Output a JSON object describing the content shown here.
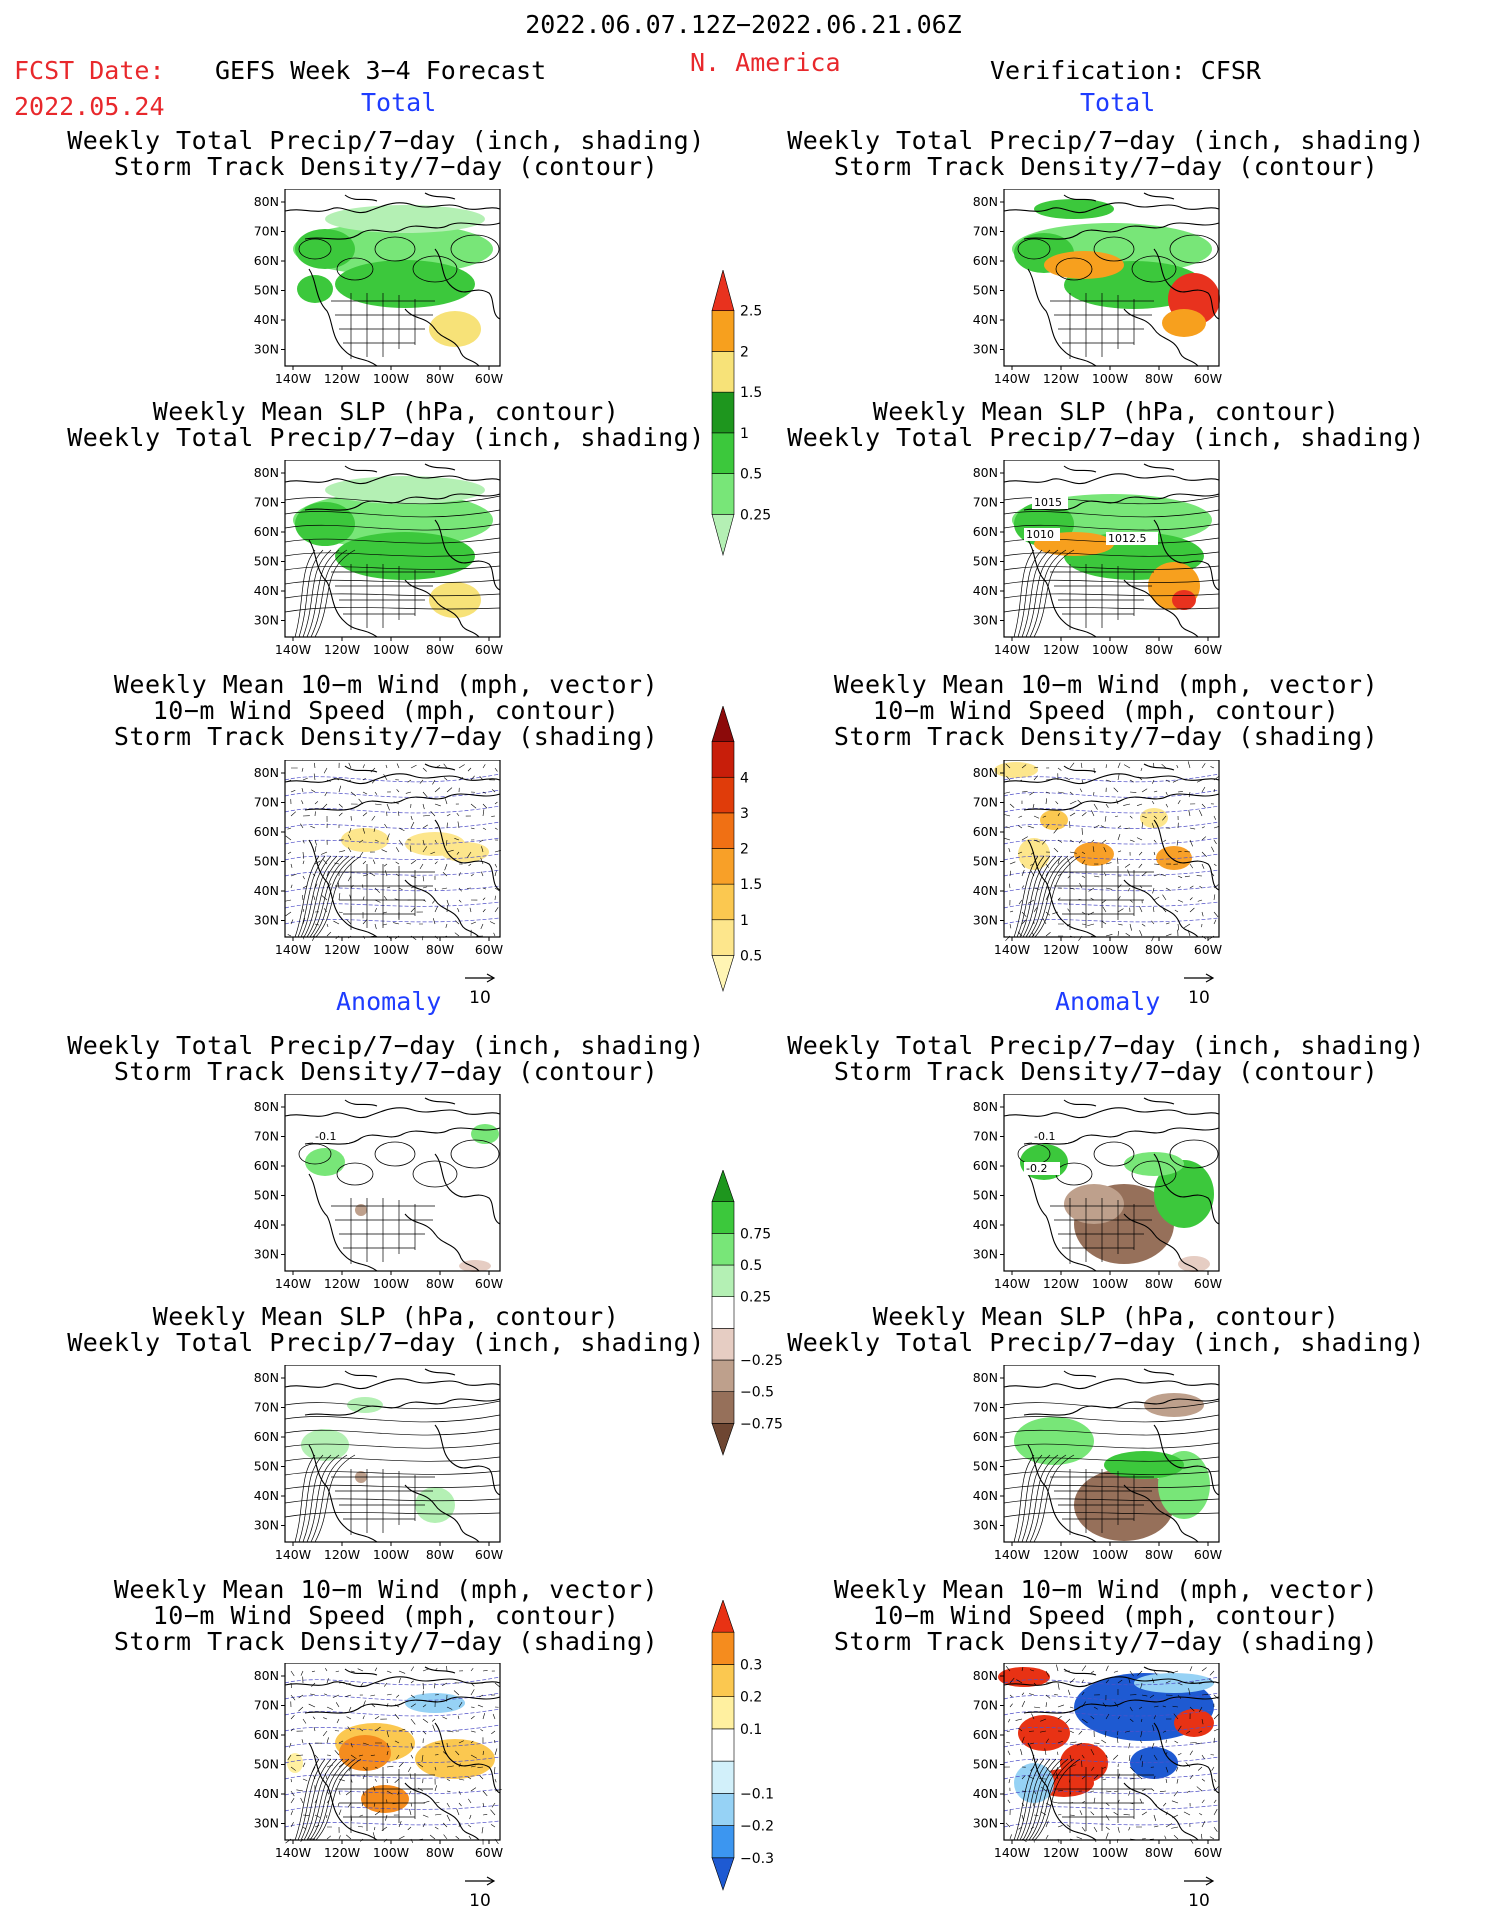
{
  "header": {
    "date_range": "2022.06.07.12Z−2022.06.21.06Z",
    "region": "N. America",
    "fcst_label": "FCST Date:",
    "fcst_date": "2022.05.24",
    "model": "GEFS Week 3−4 Forecast",
    "verification": "Verification: CFSR"
  },
  "sections": {
    "total": "Total",
    "anomaly": "Anomaly"
  },
  "titles": {
    "precip_storm": [
      "Weekly Total Precip/7−day (inch, shading)",
      "Storm Track Density/7−day (contour)"
    ],
    "slp_precip": [
      "Weekly Mean SLP (hPa, contour)",
      "Weekly Total Precip/7−day (inch, shading)"
    ],
    "wind": [
      "Weekly Mean 10−m Wind (mph, vector)",
      "10−m Wind Speed (mph, contour)",
      "Storm Track Density/7−day (shading)"
    ]
  },
  "axes": {
    "lat": [
      "80N",
      "70N",
      "60N",
      "50N",
      "40N",
      "30N"
    ],
    "lon": [
      "140W",
      "120W",
      "100W",
      "80W",
      "60W"
    ]
  },
  "vector_ref": "10",
  "contour_labels": {
    "slp_verif": [
      "1015",
      "1010",
      "1012.5"
    ],
    "anom_verif": [
      "-0.1",
      "-0.2"
    ],
    "anom_fcst": [
      "-0.1"
    ]
  },
  "colorbars": {
    "precip_total": {
      "labels": [
        "0.25",
        "0.5",
        "1",
        "1.5",
        "2",
        "2.5"
      ],
      "colors": [
        "#b4f0b4",
        "#78e678",
        "#3cc83c",
        "#1e961e",
        "#f7e278",
        "#f7a01e",
        "#e8321e"
      ]
    },
    "storm_total": {
      "labels": [
        "0.5",
        "1",
        "1.5",
        "2",
        "3",
        "4"
      ],
      "colors": [
        "#fff5b4",
        "#fde68c",
        "#fbc850",
        "#f8a028",
        "#f07014",
        "#e03c0a",
        "#c81e0a",
        "#8c0a0a"
      ]
    },
    "precip_anom": {
      "labels": [
        "−0.75",
        "−0.5",
        "−0.25",
        "0.25",
        "0.5",
        "0.75"
      ],
      "colors": [
        "#6e4632",
        "#96705a",
        "#bea08c",
        "#e6cdc3",
        "#ffffff",
        "#b4f0b4",
        "#78e678",
        "#3cc83c",
        "#1e961e"
      ]
    },
    "storm_anom": {
      "labels": [
        "−0.3",
        "−0.2",
        "−0.1",
        "0.1",
        "0.2",
        "0.3"
      ],
      "colors": [
        "#1e5ad2",
        "#3c96f0",
        "#96d2f5",
        "#d2f0fa",
        "#ffffff",
        "#fff0a0",
        "#fbc850",
        "#f58c1e",
        "#e83214"
      ]
    }
  }
}
